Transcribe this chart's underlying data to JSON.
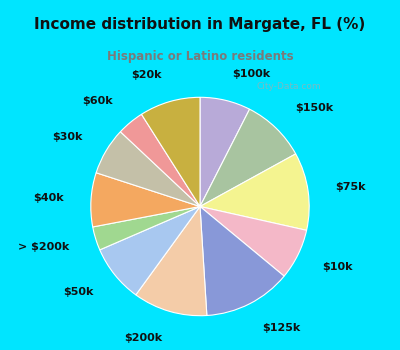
{
  "title": "Income distribution in Margate, FL (%)",
  "subtitle": "Hispanic or Latino residents",
  "title_color": "#111111",
  "subtitle_color": "#7a7a7a",
  "bg_cyan": "#00e5ff",
  "bg_inner_color": "#e0f5ee",
  "watermark": "City-Data.com",
  "labels": [
    "$100k",
    "$150k",
    "$75k",
    "$10k",
    "$125k",
    "$200k",
    "$50k",
    "> $200k",
    "$40k",
    "$30k",
    "$60k",
    "$20k"
  ],
  "values": [
    7.5,
    9.5,
    11.5,
    7.5,
    13.0,
    11.0,
    8.5,
    3.5,
    8.0,
    7.0,
    4.0,
    9.0
  ],
  "colors": [
    "#b8aad8",
    "#a8c4a0",
    "#f4f490",
    "#f4b8c8",
    "#8898d8",
    "#f4cca8",
    "#a8c8f0",
    "#a0d890",
    "#f4a860",
    "#c4c0a8",
    "#f09898",
    "#c8b040"
  ],
  "label_fontsize": 8,
  "startangle": 90,
  "label_distance": 1.25,
  "wedge_linewidth": 0.8,
  "wedge_edgecolor": "white"
}
